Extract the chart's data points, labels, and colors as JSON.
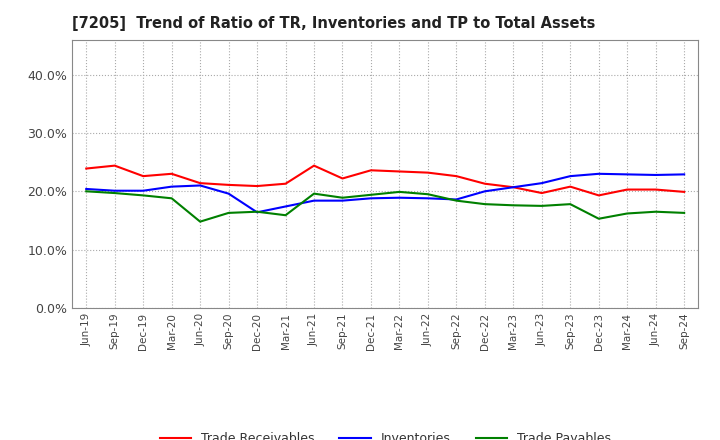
{
  "title": "[7205]  Trend of Ratio of TR, Inventories and TP to Total Assets",
  "x_labels": [
    "Jun-19",
    "Sep-19",
    "Dec-19",
    "Mar-20",
    "Jun-20",
    "Sep-20",
    "Dec-20",
    "Mar-21",
    "Jun-21",
    "Sep-21",
    "Dec-21",
    "Mar-22",
    "Jun-22",
    "Sep-22",
    "Dec-22",
    "Mar-23",
    "Jun-23",
    "Sep-23",
    "Dec-23",
    "Mar-24",
    "Jun-24",
    "Sep-24"
  ],
  "trade_receivables": [
    0.239,
    0.244,
    0.226,
    0.23,
    0.214,
    0.211,
    0.209,
    0.213,
    0.244,
    0.222,
    0.236,
    0.234,
    0.232,
    0.226,
    0.213,
    0.207,
    0.197,
    0.208,
    0.193,
    0.203,
    0.203,
    0.199
  ],
  "inventories": [
    0.204,
    0.201,
    0.201,
    0.208,
    0.21,
    0.196,
    0.164,
    0.174,
    0.184,
    0.184,
    0.188,
    0.189,
    0.188,
    0.186,
    0.2,
    0.207,
    0.214,
    0.226,
    0.23,
    0.229,
    0.228,
    0.229
  ],
  "trade_payables": [
    0.2,
    0.197,
    0.193,
    0.188,
    0.148,
    0.163,
    0.165,
    0.159,
    0.196,
    0.189,
    0.194,
    0.199,
    0.195,
    0.184,
    0.178,
    0.176,
    0.175,
    0.178,
    0.153,
    0.162,
    0.165,
    0.163
  ],
  "tr_color": "#ff0000",
  "inv_color": "#0000ff",
  "tp_color": "#008000",
  "ylim": [
    0.0,
    0.46
  ],
  "yticks": [
    0.0,
    0.1,
    0.2,
    0.3,
    0.4
  ],
  "background_color": "#ffffff",
  "grid_color": "#aaaaaa",
  "legend_labels": [
    "Trade Receivables",
    "Inventories",
    "Trade Payables"
  ]
}
